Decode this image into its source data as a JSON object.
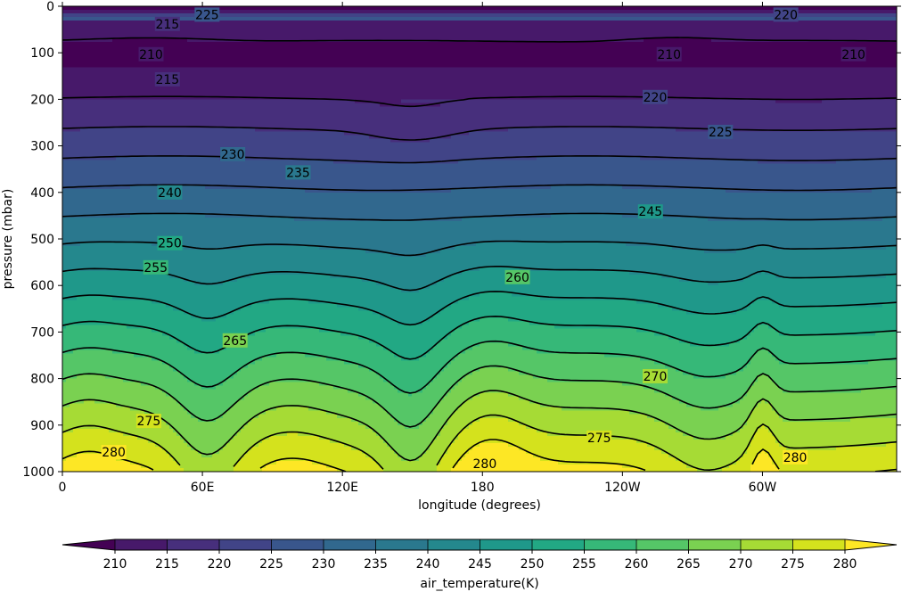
{
  "chart_data": {
    "type": "contour",
    "xlabel": "longitude (degrees)",
    "ylabel": "pressure (mbar)",
    "colorbar_label": "air_temperature(K)",
    "x_ticks": [
      "0",
      "60E",
      "120E",
      "180",
      "120W",
      "60W"
    ],
    "x_tick_values": [
      0,
      60,
      120,
      180,
      240,
      300
    ],
    "xlim": [
      0,
      357.5
    ],
    "y_ticks": [
      "0",
      "100",
      "200",
      "300",
      "400",
      "500",
      "600",
      "700",
      "800",
      "900",
      "1000"
    ],
    "y_tick_values": [
      0,
      100,
      200,
      300,
      400,
      500,
      600,
      700,
      800,
      900,
      1000
    ],
    "ylim": [
      1000,
      0
    ],
    "y_inverted": true,
    "levels": [
      205,
      210,
      215,
      220,
      225,
      230,
      235,
      240,
      245,
      250,
      255,
      260,
      265,
      270,
      275,
      280,
      285
    ],
    "colorbar_ticks": [
      "210",
      "215",
      "220",
      "225",
      "230",
      "235",
      "240",
      "245",
      "250",
      "255",
      "260",
      "265",
      "270",
      "275",
      "280"
    ],
    "colorbar_extend": "both",
    "colormap": "viridis",
    "contour_labels": [
      {
        "text": "225",
        "lon": 62,
        "p": 18
      },
      {
        "text": "215",
        "lon": 45,
        "p": 38
      },
      {
        "text": "210",
        "lon": 38,
        "p": 103
      },
      {
        "text": "215",
        "lon": 45,
        "p": 157
      },
      {
        "text": "220",
        "lon": 310,
        "p": 18
      },
      {
        "text": "210",
        "lon": 260,
        "p": 103
      },
      {
        "text": "210",
        "lon": 339,
        "p": 103
      },
      {
        "text": "220",
        "lon": 254,
        "p": 195
      },
      {
        "text": "225",
        "lon": 282,
        "p": 270
      },
      {
        "text": "230",
        "lon": 73,
        "p": 318
      },
      {
        "text": "235",
        "lon": 101,
        "p": 357
      },
      {
        "text": "240",
        "lon": 46,
        "p": 400
      },
      {
        "text": "245",
        "lon": 252,
        "p": 441
      },
      {
        "text": "250",
        "lon": 46,
        "p": 509
      },
      {
        "text": "255",
        "lon": 40,
        "p": 561
      },
      {
        "text": "260",
        "lon": 195,
        "p": 582
      },
      {
        "text": "265",
        "lon": 74,
        "p": 718
      },
      {
        "text": "270",
        "lon": 254,
        "p": 795
      },
      {
        "text": "275",
        "lon": 37,
        "p": 891
      },
      {
        "text": "275",
        "lon": 230,
        "p": 927
      },
      {
        "text": "280",
        "lon": 22,
        "p": 958
      },
      {
        "text": "280",
        "lon": 181,
        "p": 983
      },
      {
        "text": "280",
        "lon": 314,
        "p": 969
      }
    ]
  }
}
